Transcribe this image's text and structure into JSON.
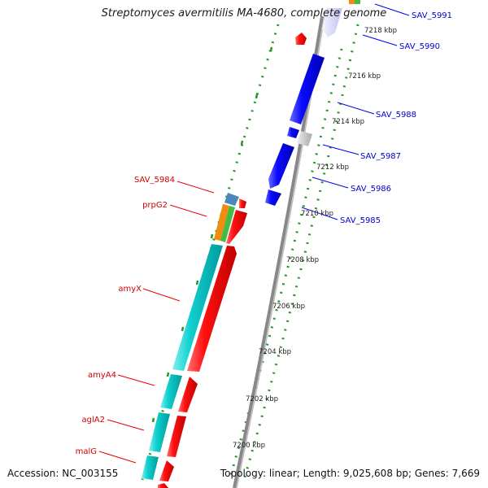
{
  "title": "Streptomyces avermitilis MA-4680, complete genome",
  "accession": "Accession: NC_003155",
  "topology": "Topology: linear; Length: 9,025,608 bp; Genes: 7,669",
  "ticks": [
    "7218 kbp",
    "7216 kbp",
    "7214 kbp",
    "7212 kbp",
    "7210 kbp",
    "7208 kbp",
    "7206 kbp",
    "7204 kbp",
    "7202 kbp",
    "7200 kbp"
  ],
  "genes_forward": [
    "SAV_5991",
    "SAV_5990",
    "SAV_5988",
    "SAV_5987",
    "SAV_5986",
    "SAV_5985"
  ],
  "genes_reverse": [
    "SAV_5984",
    "prpG2",
    "amyX",
    "amyA4",
    "aglA2",
    "malG"
  ],
  "colors": {
    "forward_cds": "#0000ee",
    "reverse_cds": "#ee0000",
    "cyan_track": "#00c8c8",
    "blue_feature": "#4d86b8",
    "orange_feature": "#f08c10",
    "green_feature": "#44bb44",
    "gray_feature": "#c8c8c8",
    "backbone": "#808080",
    "dotted_ring": "#229922",
    "forward_label": "#0000cc",
    "reverse_label": "#d10000"
  }
}
